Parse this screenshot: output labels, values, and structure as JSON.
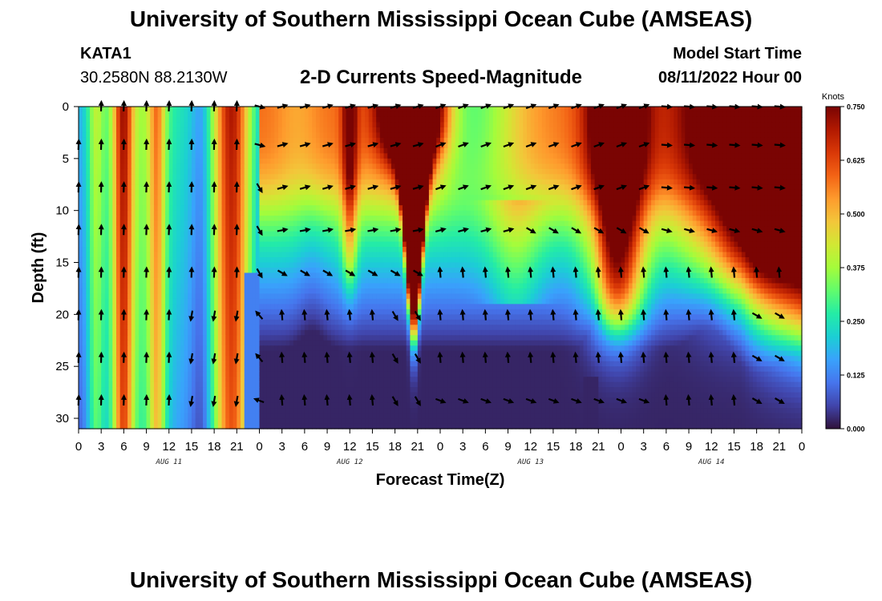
{
  "header": {
    "title": "University of Southern Mississippi Ocean Cube (AMSEAS)",
    "station": "KATA1",
    "coords": "30.2580N  88.2130W",
    "subtitle": "2-D Currents Speed-Magnitude",
    "model_label": "Model Start Time",
    "model_time": "08/11/2022 Hour 00"
  },
  "footer": {
    "title": "University of Southern Mississippi Ocean Cube (AMSEAS)"
  },
  "colors": {
    "ramp": [
      "#30123b",
      "#4145ab",
      "#4675ed",
      "#39a2fc",
      "#1bcfd4",
      "#24eca6",
      "#61fc6c",
      "#a4fc3b",
      "#d1e834",
      "#f3c63a",
      "#fe9b2d",
      "#f36315",
      "#d93807",
      "#b11901",
      "#7a0403"
    ]
  },
  "chart_data": {
    "type": "heatmap",
    "title": "2-D Currents Speed-Magnitude",
    "xlabel": "Forecast Time(Z)",
    "ylabel": "Depth (ft)",
    "xlim": [
      0,
      96
    ],
    "ylim": [
      0,
      31
    ],
    "x_tick_labels": [
      "0",
      "3",
      "6",
      "9",
      "12",
      "15",
      "18",
      "21",
      "0",
      "3",
      "6",
      "9",
      "12",
      "15",
      "18",
      "21",
      "0",
      "3",
      "6",
      "9",
      "12",
      "15",
      "18",
      "21",
      "0",
      "3",
      "6",
      "9",
      "12",
      "15",
      "18",
      "21",
      "0"
    ],
    "y_ticks": [
      0,
      5,
      10,
      15,
      20,
      25,
      30
    ],
    "day_labels": [
      {
        "label": "AUG 11",
        "hour": 12
      },
      {
        "label": "AUG 12",
        "hour": 36
      },
      {
        "label": "AUG 13",
        "hour": 60
      },
      {
        "label": "AUG 14",
        "hour": 84
      }
    ],
    "colorbar": {
      "unit": "Knots",
      "min": 0.0,
      "max": 0.75,
      "tick_values": [
        0.0,
        0.125,
        0.25,
        0.375,
        0.5,
        0.625,
        0.75
      ],
      "tick_labels": [
        "0.000",
        "0.125",
        "0.250",
        "0.375",
        "0.500",
        "0.625",
        "0.750"
      ]
    },
    "arrow_depths_ft": [
      0,
      3.7,
      7.8,
      11.9,
      16.0,
      20.1,
      24.2,
      28.3
    ]
  }
}
